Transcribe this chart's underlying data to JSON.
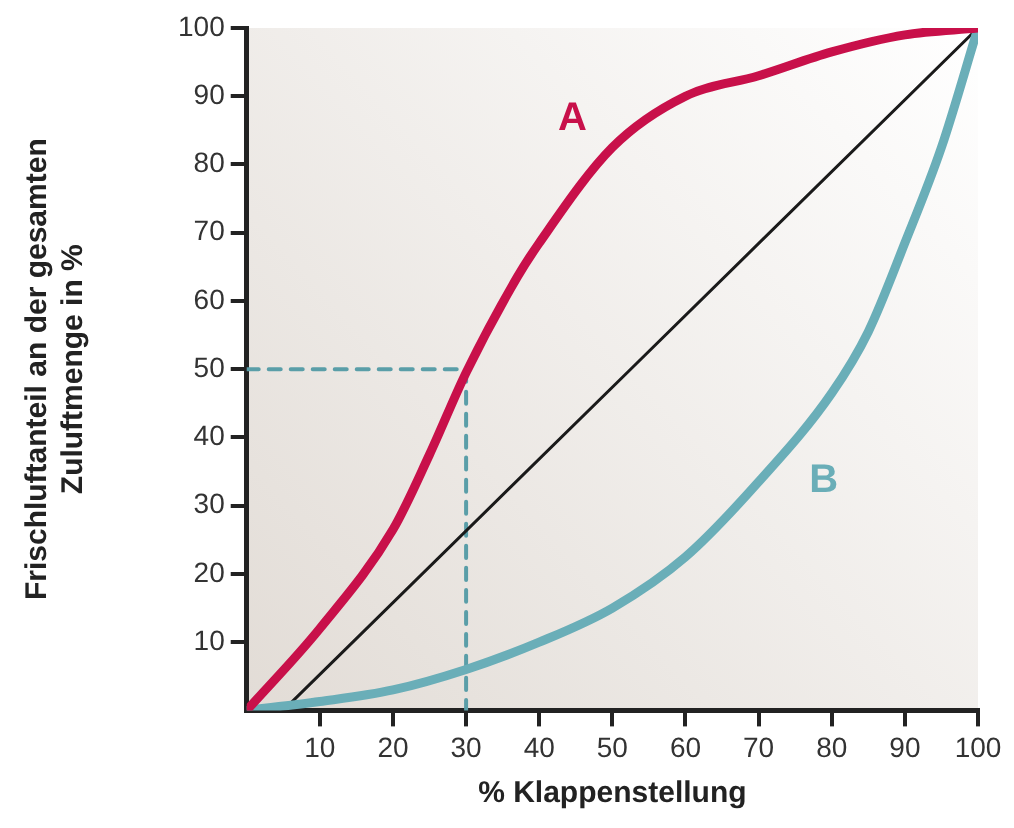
{
  "chart_data": {
    "type": "line",
    "xlabel": "% Klappenstellung",
    "ylabel": "Frischluftanteil an der gesamten\nZuluftmenge in %",
    "series": [
      {
        "name": "A",
        "color": "#c8104a",
        "x": [
          0,
          10,
          20,
          25,
          30,
          37,
          40,
          50,
          60,
          70,
          80,
          90,
          100
        ],
        "values": [
          0,
          12,
          26.5,
          37.5,
          49.5,
          63.5,
          68.5,
          82.5,
          90,
          93,
          96.5,
          99,
          100
        ]
      },
      {
        "name": "B",
        "color": "#6aaeb8",
        "x": [
          0,
          10,
          20,
          30,
          40,
          50,
          60,
          70,
          80,
          85,
          90,
          95,
          100
        ],
        "values": [
          0,
          1.3,
          3,
          6,
          10,
          15,
          22.5,
          33.5,
          46.5,
          55.5,
          68.5,
          82.5,
          100
        ]
      },
      {
        "color": "#1a1a1a",
        "x": [
          5,
          100
        ],
        "values": [
          0,
          100
        ]
      },
      {
        "color": "#5a9ea8",
        "x": [
          0,
          30,
          30
        ],
        "values": [
          50,
          50,
          0
        ],
        "line_style": "dashed"
      }
    ],
    "xlim": [
      0,
      100
    ],
    "ylim": [
      0,
      100
    ],
    "xticks": [
      10,
      20,
      30,
      40,
      50,
      60,
      70,
      80,
      90,
      100
    ],
    "yticks": [
      10,
      20,
      30,
      40,
      50,
      60,
      70,
      80,
      90,
      100
    ],
    "grid": false,
    "legend": false,
    "marker": "none"
  }
}
